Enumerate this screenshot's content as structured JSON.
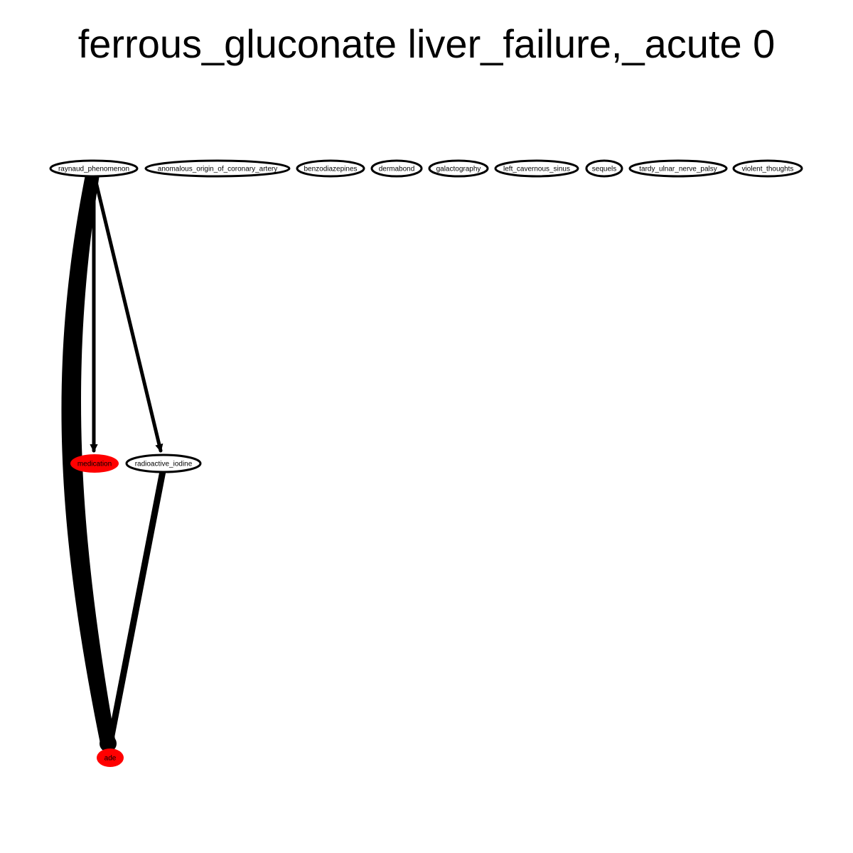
{
  "title": "ferrous_gluconate liver_failure,_acute 0",
  "colors": {
    "background": "#ffffff",
    "edge": "#000000",
    "node_stroke": "#000000",
    "node_fill_default": "#ffffff",
    "node_fill_highlight": "#ff0000"
  },
  "nodes": [
    {
      "id": "raynaud_phenomenon",
      "label": "raynaud_phenomenon",
      "highlight": false
    },
    {
      "id": "anomalous_origin_of_coronary_artery",
      "label": "anomalous_origin_of_coronary_artery",
      "highlight": false
    },
    {
      "id": "benzodiazepines",
      "label": "benzodiazepines",
      "highlight": false
    },
    {
      "id": "dermabond",
      "label": "dermabond",
      "highlight": false
    },
    {
      "id": "galactography",
      "label": "galactography",
      "highlight": false
    },
    {
      "id": "left_cavernous_sinus",
      "label": "left_cavernous_sinus",
      "highlight": false
    },
    {
      "id": "sequels",
      "label": "sequels",
      "highlight": false
    },
    {
      "id": "tardy_ulnar_nerve_palsy",
      "label": "tardy_ulnar_nerve_palsy",
      "highlight": false
    },
    {
      "id": "violent_thoughts",
      "label": "violent_thoughts",
      "highlight": false
    },
    {
      "id": "medication",
      "label": "medication",
      "highlight": true
    },
    {
      "id": "radioactive_iodine",
      "label": "radioactive_iodine",
      "highlight": false
    },
    {
      "id": "ade",
      "label": "ade",
      "highlight": true
    }
  ],
  "edges": [
    {
      "from": "raynaud_phenomenon",
      "to": "ade",
      "weight": "heavy"
    },
    {
      "from": "raynaud_phenomenon",
      "to": "medication",
      "weight": "light"
    },
    {
      "from": "raynaud_phenomenon",
      "to": "radioactive_iodine",
      "weight": "light"
    },
    {
      "from": "radioactive_iodine",
      "to": "ade",
      "weight": "medium"
    }
  ]
}
